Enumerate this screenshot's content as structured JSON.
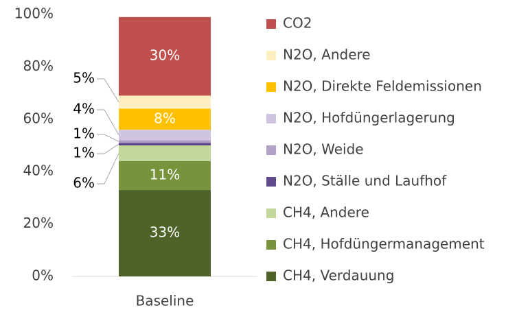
{
  "chart_data": {
    "type": "stacked_bar",
    "categories": [
      "Baseline"
    ],
    "ylim": [
      0,
      100
    ],
    "yticks": [
      {
        "value": 0,
        "label": "0%"
      },
      {
        "value": 20,
        "label": "20%"
      },
      {
        "value": 40,
        "label": "40%"
      },
      {
        "value": 60,
        "label": "60%"
      },
      {
        "value": 80,
        "label": "80%"
      },
      {
        "value": 100,
        "label": "100%"
      }
    ],
    "series": [
      {
        "name": "CH4, Verdauung",
        "color": "#4f6228",
        "values": [
          33
        ],
        "value_labels": [
          "33%"
        ]
      },
      {
        "name": "CH4, Hofdüngermanagement",
        "color": "#77933c",
        "values": [
          11
        ],
        "value_labels": [
          "11%"
        ]
      },
      {
        "name": "CH4, Andere",
        "color": "#c4d79b",
        "values": [
          6
        ],
        "value_labels": [
          "6%"
        ]
      },
      {
        "name": "N2O, Ställe und Laufhof",
        "color": "#5f4b8b",
        "values": [
          1
        ],
        "value_labels": [
          "1%"
        ]
      },
      {
        "name": "N2O, Weide",
        "color": "#b3a2c7",
        "values": [
          1
        ],
        "value_labels": [
          "1%"
        ]
      },
      {
        "name": "N2O, Hofdüngerlagerung",
        "color": "#d0c5e0",
        "values": [
          4
        ],
        "value_labels": [
          "4%"
        ]
      },
      {
        "name": "N2O, Direkte Feldemissionen",
        "color": "#ffc000",
        "values": [
          8
        ],
        "value_labels": [
          "8%"
        ]
      },
      {
        "name": "N2O, Andere",
        "color": "#fdeebf",
        "values": [
          5
        ],
        "value_labels": [
          "5%"
        ]
      },
      {
        "name": "CO2",
        "color": "#c0504d",
        "values": [
          30
        ],
        "value_labels": [
          "30%"
        ]
      }
    ],
    "legend": "right"
  }
}
